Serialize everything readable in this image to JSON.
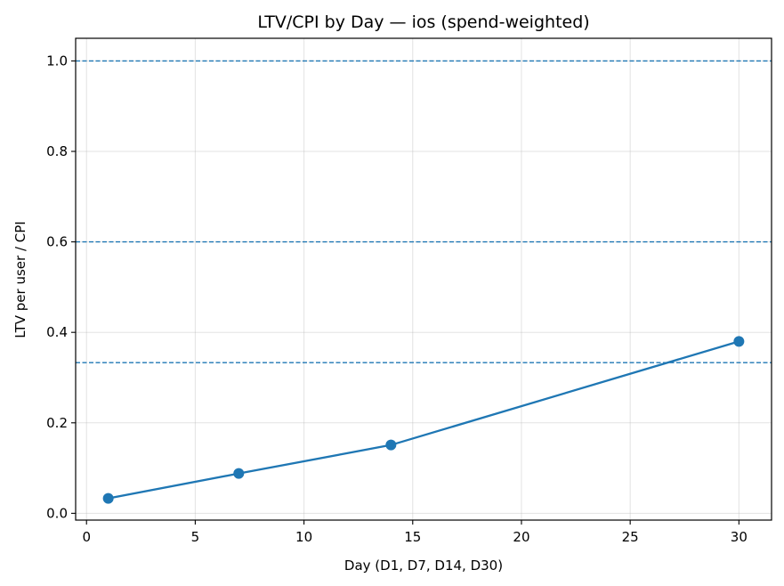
{
  "chart_data": {
    "type": "line",
    "title": "LTV/CPI by Day — ios (spend-weighted)",
    "xlabel": "Day (D1, D7, D14, D30)",
    "ylabel": "LTV per user / CPI",
    "xlim": [
      -0.5,
      31.5
    ],
    "ylim": [
      -0.015,
      1.05
    ],
    "xticks": [
      0,
      5,
      10,
      15,
      20,
      25,
      30
    ],
    "xtick_labels": [
      "0",
      "5",
      "10",
      "15",
      "20",
      "25",
      "30"
    ],
    "yticks": [
      0.0,
      0.2,
      0.4,
      0.6,
      0.8,
      1.0
    ],
    "ytick_labels": [
      "0.0",
      "0.2",
      "0.4",
      "0.6",
      "0.8",
      "1.0"
    ],
    "grid": true,
    "series": [
      {
        "x": [
          1,
          7,
          14,
          30
        ],
        "values": [
          0.033,
          0.088,
          0.151,
          0.38
        ],
        "color": "#1f77b4",
        "marker": "circle"
      }
    ],
    "reference_lines": [
      {
        "y": 1.0,
        "style": "dashed",
        "color": "#1f77b4"
      },
      {
        "y": 0.6,
        "style": "dashed",
        "color": "#1f77b4"
      },
      {
        "y": 0.333,
        "style": "dashed",
        "color": "#1f77b4"
      }
    ]
  }
}
